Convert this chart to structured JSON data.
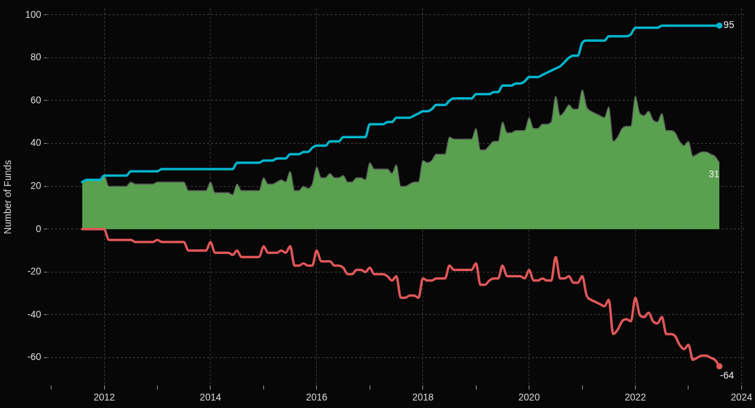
{
  "chart_data": {
    "type": "line",
    "ylabel": "Number of Funds",
    "grid": true,
    "xlim": [
      "2010-12",
      "2024-02"
    ],
    "ylim": [
      -73,
      103
    ],
    "xticks": [
      {
        "value": "2011",
        "label": null
      },
      "2012",
      {
        "value": "2013",
        "label": null
      },
      "2014",
      {
        "value": "2015",
        "label": null
      },
      "2016",
      {
        "value": "2017",
        "label": null
      },
      "2018",
      {
        "value": "2019",
        "label": null
      },
      "2020",
      {
        "value": "2021",
        "label": null
      },
      "2022",
      {
        "value": "2023",
        "label": null
      },
      "2024"
    ],
    "yticks": [
      -60,
      -40,
      -20,
      0,
      20,
      40,
      60,
      80,
      100
    ],
    "x": [
      "2011-08",
      "2011-09",
      "2011-10",
      "2011-11",
      "2011-12",
      "2012-01",
      "2012-02",
      "2012-03",
      "2012-04",
      "2012-05",
      "2012-06",
      "2012-07",
      "2012-08",
      "2012-09",
      "2012-10",
      "2012-11",
      "2012-12",
      "2013-01",
      "2013-02",
      "2013-03",
      "2013-04",
      "2013-05",
      "2013-06",
      "2013-07",
      "2013-08",
      "2013-09",
      "2013-10",
      "2013-11",
      "2013-12",
      "2014-01",
      "2014-02",
      "2014-03",
      "2014-04",
      "2014-05",
      "2014-06",
      "2014-07",
      "2014-08",
      "2014-09",
      "2014-10",
      "2014-11",
      "2014-12",
      "2015-01",
      "2015-02",
      "2015-03",
      "2015-04",
      "2015-05",
      "2015-06",
      "2015-07",
      "2015-08",
      "2015-09",
      "2015-10",
      "2015-11",
      "2015-12",
      "2016-01",
      "2016-02",
      "2016-03",
      "2016-04",
      "2016-05",
      "2016-06",
      "2016-07",
      "2016-08",
      "2016-09",
      "2016-10",
      "2016-11",
      "2016-12",
      "2017-01",
      "2017-02",
      "2017-03",
      "2017-04",
      "2017-05",
      "2017-06",
      "2017-07",
      "2017-08",
      "2017-09",
      "2017-10",
      "2017-11",
      "2017-12",
      "2018-01",
      "2018-02",
      "2018-03",
      "2018-04",
      "2018-05",
      "2018-06",
      "2018-07",
      "2018-08",
      "2018-09",
      "2018-10",
      "2018-11",
      "2018-12",
      "2019-01",
      "2019-02",
      "2019-03",
      "2019-04",
      "2019-05",
      "2019-06",
      "2019-07",
      "2019-08",
      "2019-09",
      "2019-10",
      "2019-11",
      "2019-12",
      "2020-01",
      "2020-02",
      "2020-03",
      "2020-04",
      "2020-05",
      "2020-06",
      "2020-07",
      "2020-08",
      "2020-09",
      "2020-10",
      "2020-11",
      "2020-12",
      "2021-01",
      "2021-02",
      "2021-03",
      "2021-04",
      "2021-05",
      "2021-06",
      "2021-07",
      "2021-08",
      "2021-09",
      "2021-10",
      "2021-11",
      "2021-12",
      "2022-01",
      "2022-02",
      "2022-03",
      "2022-04",
      "2022-05",
      "2022-06",
      "2022-07",
      "2022-08",
      "2022-09",
      "2022-10",
      "2022-11",
      "2022-12",
      "2023-01",
      "2023-02",
      "2023-03",
      "2023-04",
      "2023-05",
      "2023-06",
      "2023-07",
      "2023-08"
    ],
    "series": [
      {
        "type": "area",
        "color": "#59a14f",
        "values": [
          22,
          23,
          23,
          23,
          23,
          25,
          20,
          20,
          20,
          20,
          20,
          22,
          21,
          21,
          21,
          21,
          21,
          22,
          22,
          22,
          22,
          22,
          22,
          22,
          18,
          18,
          18,
          18,
          18,
          22,
          17,
          17,
          17,
          17,
          16,
          21,
          18,
          18,
          18,
          18,
          18,
          24,
          21,
          21,
          22,
          23,
          22,
          27,
          18,
          18,
          20,
          19,
          21,
          29,
          24,
          24,
          26,
          24,
          24,
          25,
          22,
          22,
          24,
          24,
          23,
          31,
          28,
          28,
          28,
          28,
          26,
          30,
          20,
          20,
          21,
          22,
          22,
          32,
          31,
          32,
          35,
          35,
          35,
          43,
          42,
          42,
          42,
          42,
          42,
          47,
          37,
          37,
          39,
          41,
          41,
          50,
          45,
          45,
          46,
          46,
          46,
          52,
          47,
          47,
          49,
          49,
          50,
          62,
          53,
          55,
          58,
          56,
          56,
          65,
          57,
          55,
          54,
          53,
          52,
          57,
          41,
          43,
          47,
          48,
          48,
          62,
          54,
          53,
          55,
          51,
          50,
          54,
          46,
          46,
          45,
          41,
          39,
          41,
          34,
          35,
          36,
          36,
          35,
          34,
          31
        ],
        "value_labels": [
          null,
          null,
          null,
          null,
          null,
          null,
          null,
          null,
          null,
          null,
          null,
          null,
          null,
          null,
          null,
          null,
          null,
          null,
          null,
          null,
          null,
          null,
          null,
          null,
          null,
          null,
          null,
          null,
          null,
          null,
          null,
          null,
          null,
          null,
          null,
          null,
          null,
          null,
          null,
          null,
          null,
          null,
          null,
          null,
          null,
          null,
          null,
          null,
          null,
          null,
          null,
          null,
          null,
          null,
          null,
          null,
          null,
          null,
          null,
          null,
          null,
          null,
          null,
          null,
          null,
          null,
          null,
          null,
          null,
          null,
          null,
          null,
          null,
          null,
          null,
          null,
          null,
          null,
          null,
          null,
          null,
          null,
          null,
          null,
          null,
          null,
          null,
          null,
          null,
          null,
          null,
          null,
          null,
          null,
          null,
          null,
          null,
          null,
          null,
          null,
          null,
          null,
          null,
          null,
          null,
          null,
          null,
          null,
          null,
          null,
          null,
          null,
          null,
          null,
          null,
          null,
          null,
          null,
          null,
          null,
          null,
          null,
          null,
          null,
          null,
          null,
          null,
          null,
          null,
          null,
          null,
          null,
          null,
          null,
          null,
          null,
          null,
          null,
          null,
          null,
          null,
          null,
          null,
          null,
          "31"
        ]
      },
      {
        "color": "#00b7ce",
        "values": [
          22,
          23,
          23,
          23,
          23,
          25,
          25,
          25,
          25,
          25,
          25,
          27,
          27,
          27,
          27,
          27,
          27,
          27,
          28,
          28,
          28,
          28,
          28,
          28,
          28,
          28,
          28,
          28,
          28,
          28,
          28,
          28,
          28,
          28,
          28,
          31,
          31,
          31,
          31,
          31,
          31,
          32,
          32,
          32,
          33,
          33,
          33,
          35,
          35,
          35,
          36,
          36,
          38,
          39,
          39,
          39,
          41,
          41,
          41,
          43,
          43,
          43,
          43,
          43,
          43,
          49,
          49,
          49,
          49,
          50,
          50,
          52,
          52,
          52,
          52,
          53,
          54,
          55,
          55,
          56,
          58,
          58,
          58,
          60,
          61,
          61,
          61,
          61,
          61,
          63,
          63,
          63,
          63,
          64,
          64,
          67,
          67,
          67,
          68,
          68,
          69,
          71,
          71,
          71,
          72,
          73,
          74,
          75,
          76,
          78,
          80,
          81,
          81,
          87,
          88,
          88,
          88,
          88,
          88,
          90,
          90,
          90,
          90,
          90,
          91,
          94,
          94,
          94,
          94,
          94,
          94,
          95,
          95,
          95,
          95,
          95,
          95,
          95,
          95,
          95,
          95,
          95,
          95,
          95,
          95
        ],
        "value_labels": [
          null,
          null,
          null,
          null,
          null,
          null,
          null,
          null,
          null,
          null,
          null,
          null,
          null,
          null,
          null,
          null,
          null,
          null,
          null,
          null,
          null,
          null,
          null,
          null,
          null,
          null,
          null,
          null,
          null,
          null,
          null,
          null,
          null,
          null,
          null,
          null,
          null,
          null,
          null,
          null,
          null,
          null,
          null,
          null,
          null,
          null,
          null,
          null,
          null,
          null,
          null,
          null,
          null,
          null,
          null,
          null,
          null,
          null,
          null,
          null,
          null,
          null,
          null,
          null,
          null,
          null,
          null,
          null,
          null,
          null,
          null,
          null,
          null,
          null,
          null,
          null,
          null,
          null,
          null,
          null,
          null,
          null,
          null,
          null,
          null,
          null,
          null,
          null,
          null,
          null,
          null,
          null,
          null,
          null,
          null,
          null,
          null,
          null,
          null,
          null,
          null,
          null,
          null,
          null,
          null,
          null,
          null,
          null,
          null,
          null,
          null,
          null,
          null,
          null,
          null,
          null,
          null,
          null,
          null,
          null,
          null,
          null,
          null,
          null,
          null,
          null,
          null,
          null,
          null,
          null,
          null,
          null,
          null,
          null,
          null,
          null,
          null,
          null,
          null,
          null,
          null,
          null,
          null,
          null,
          "95"
        ]
      },
      {
        "color": "#e15759",
        "values": [
          0,
          0,
          0,
          0,
          0,
          0,
          -5,
          -5,
          -5,
          -5,
          -5,
          -5,
          -6,
          -6,
          -6,
          -6,
          -6,
          -5,
          -6,
          -6,
          -6,
          -6,
          -6,
          -6,
          -10,
          -10,
          -10,
          -10,
          -10,
          -6,
          -11,
          -11,
          -11,
          -11,
          -12,
          -10,
          -13,
          -13,
          -13,
          -13,
          -13,
          -8,
          -11,
          -11,
          -11,
          -10,
          -11,
          -8,
          -17,
          -17,
          -16,
          -17,
          -17,
          -10,
          -15,
          -15,
          -15,
          -17,
          -17,
          -18,
          -21,
          -21,
          -19,
          -19,
          -20,
          -18,
          -21,
          -21,
          -21,
          -22,
          -24,
          -22,
          -32,
          -32,
          -31,
          -31,
          -32,
          -23,
          -24,
          -24,
          -23,
          -23,
          -23,
          -17,
          -19,
          -19,
          -19,
          -19,
          -19,
          -16,
          -26,
          -26,
          -24,
          -23,
          -23,
          -17,
          -22,
          -22,
          -22,
          -22,
          -23,
          -19,
          -24,
          -24,
          -23,
          -24,
          -24,
          -13,
          -23,
          -23,
          -22,
          -25,
          -25,
          -22,
          -31,
          -33,
          -34,
          -35,
          -36,
          -33,
          -49,
          -47,
          -43,
          -42,
          -43,
          -32,
          -40,
          -41,
          -39,
          -43,
          -44,
          -41,
          -49,
          -49,
          -50,
          -54,
          -56,
          -54,
          -61,
          -60,
          -59,
          -59,
          -60,
          -61,
          -64
        ],
        "value_labels": [
          null,
          null,
          null,
          null,
          null,
          null,
          null,
          null,
          null,
          null,
          null,
          null,
          null,
          null,
          null,
          null,
          null,
          null,
          null,
          null,
          null,
          null,
          null,
          null,
          null,
          null,
          null,
          null,
          null,
          null,
          null,
          null,
          null,
          null,
          null,
          null,
          null,
          null,
          null,
          null,
          null,
          null,
          null,
          null,
          null,
          null,
          null,
          null,
          null,
          null,
          null,
          null,
          null,
          null,
          null,
          null,
          null,
          null,
          null,
          null,
          null,
          null,
          null,
          null,
          null,
          null,
          null,
          null,
          null,
          null,
          null,
          null,
          null,
          null,
          null,
          null,
          null,
          null,
          null,
          null,
          null,
          null,
          null,
          null,
          null,
          null,
          null,
          null,
          null,
          null,
          null,
          null,
          null,
          null,
          null,
          null,
          null,
          null,
          null,
          null,
          null,
          null,
          null,
          null,
          null,
          null,
          null,
          null,
          null,
          null,
          null,
          null,
          null,
          null,
          null,
          null,
          null,
          null,
          null,
          null,
          null,
          null,
          null,
          null,
          null,
          null,
          null,
          null,
          null,
          null,
          null,
          null,
          null,
          null,
          null,
          null,
          null,
          null,
          null,
          null,
          null,
          null,
          null,
          null,
          "-64"
        ]
      }
    ]
  }
}
